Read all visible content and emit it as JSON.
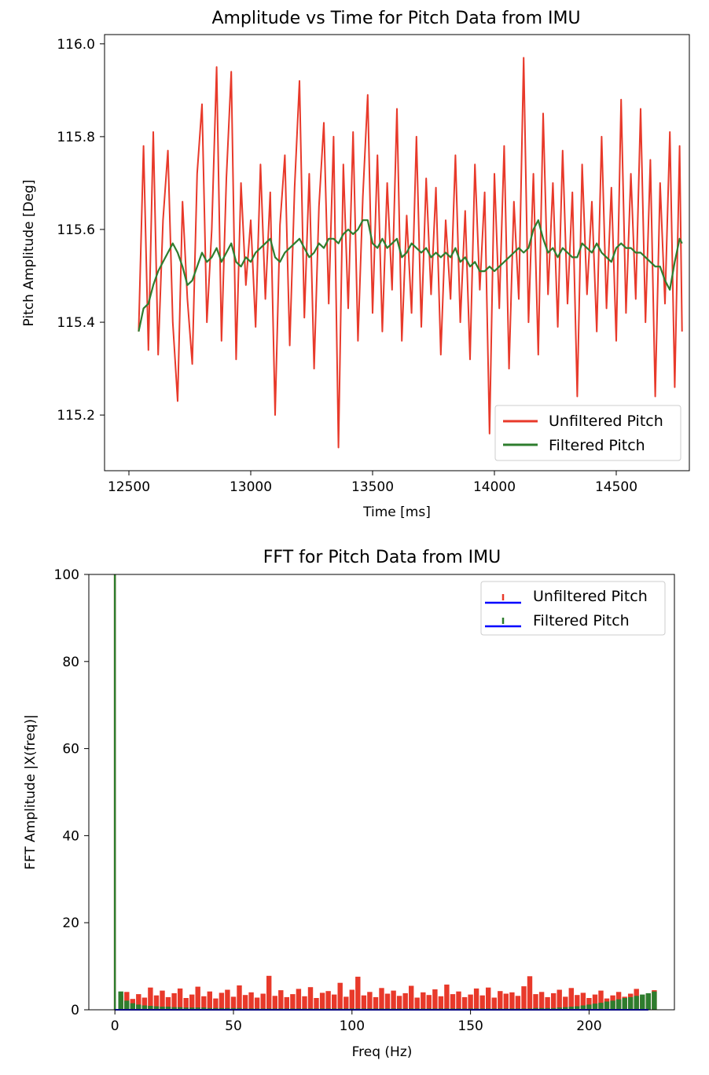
{
  "chart_data": [
    {
      "type": "line",
      "title": "Amplitude vs Time for Pitch Data from IMU",
      "xlabel": "Time [ms]",
      "ylabel": "Pitch Amplitude [Deg]",
      "xlim": [
        12400,
        14800
      ],
      "ylim": [
        115.08,
        116.02
      ],
      "xticks": [
        "12500",
        "13000",
        "13500",
        "14000",
        "14500"
      ],
      "yticks": [
        "115.2",
        "115.4",
        "115.6",
        "115.8",
        "116.0"
      ],
      "legend_position": "lower-right",
      "series": [
        {
          "name": "Unfiltered Pitch",
          "color": "#e8392a",
          "x": [
            12540,
            12560,
            12580,
            12600,
            12620,
            12640,
            12660,
            12680,
            12700,
            12720,
            12740,
            12760,
            12780,
            12800,
            12820,
            12840,
            12860,
            12880,
            12900,
            12920,
            12940,
            12960,
            12980,
            13000,
            13020,
            13040,
            13060,
            13080,
            13100,
            13120,
            13140,
            13160,
            13180,
            13200,
            13220,
            13240,
            13260,
            13280,
            13300,
            13320,
            13340,
            13360,
            13380,
            13400,
            13420,
            13440,
            13460,
            13480,
            13500,
            13520,
            13540,
            13560,
            13580,
            13600,
            13620,
            13640,
            13660,
            13680,
            13700,
            13720,
            13740,
            13760,
            13780,
            13800,
            13820,
            13840,
            13860,
            13880,
            13900,
            13920,
            13940,
            13960,
            13980,
            14000,
            14020,
            14040,
            14060,
            14080,
            14100,
            14120,
            14140,
            14160,
            14180,
            14200,
            14220,
            14240,
            14260,
            14280,
            14300,
            14320,
            14340,
            14360,
            14380,
            14400,
            14420,
            14440,
            14460,
            14480,
            14500,
            14520,
            14540,
            14560,
            14580,
            14600,
            14620,
            14640,
            14660,
            14680,
            14700,
            14720,
            14740,
            14760,
            14770
          ],
          "y": [
            115.38,
            115.78,
            115.34,
            115.81,
            115.33,
            115.62,
            115.77,
            115.4,
            115.23,
            115.66,
            115.45,
            115.31,
            115.72,
            115.87,
            115.4,
            115.6,
            115.95,
            115.36,
            115.71,
            115.94,
            115.32,
            115.7,
            115.48,
            115.62,
            115.39,
            115.74,
            115.45,
            115.68,
            115.2,
            115.61,
            115.76,
            115.35,
            115.69,
            115.92,
            115.41,
            115.72,
            115.3,
            115.65,
            115.83,
            115.44,
            115.8,
            115.13,
            115.74,
            115.43,
            115.81,
            115.36,
            115.67,
            115.89,
            115.42,
            115.76,
            115.38,
            115.7,
            115.47,
            115.86,
            115.36,
            115.63,
            115.42,
            115.8,
            115.39,
            115.71,
            115.46,
            115.69,
            115.33,
            115.62,
            115.45,
            115.76,
            115.4,
            115.64,
            115.32,
            115.74,
            115.47,
            115.68,
            115.16,
            115.72,
            115.43,
            115.78,
            115.3,
            115.66,
            115.45,
            115.97,
            115.4,
            115.72,
            115.33,
            115.85,
            115.46,
            115.7,
            115.39,
            115.77,
            115.44,
            115.68,
            115.24,
            115.74,
            115.46,
            115.66,
            115.38,
            115.8,
            115.43,
            115.69,
            115.36,
            115.88,
            115.42,
            115.72,
            115.45,
            115.86,
            115.4,
            115.75,
            115.24,
            115.7,
            115.44,
            115.81,
            115.26,
            115.78,
            115.38
          ]
        },
        {
          "name": "Filtered Pitch",
          "color": "#2e7d2e",
          "x": [
            12540,
            12560,
            12580,
            12600,
            12620,
            12640,
            12660,
            12680,
            12700,
            12720,
            12740,
            12760,
            12780,
            12800,
            12820,
            12840,
            12860,
            12880,
            12900,
            12920,
            12940,
            12960,
            12980,
            13000,
            13020,
            13040,
            13060,
            13080,
            13100,
            13120,
            13140,
            13160,
            13180,
            13200,
            13220,
            13240,
            13260,
            13280,
            13300,
            13320,
            13340,
            13360,
            13380,
            13400,
            13420,
            13440,
            13460,
            13480,
            13500,
            13520,
            13540,
            13560,
            13580,
            13600,
            13620,
            13640,
            13660,
            13680,
            13700,
            13720,
            13740,
            13760,
            13780,
            13800,
            13820,
            13840,
            13860,
            13880,
            13900,
            13920,
            13940,
            13960,
            13980,
            14000,
            14020,
            14040,
            14060,
            14080,
            14100,
            14120,
            14140,
            14160,
            14180,
            14200,
            14220,
            14240,
            14260,
            14280,
            14300,
            14320,
            14340,
            14360,
            14380,
            14400,
            14420,
            14440,
            14460,
            14480,
            14500,
            14520,
            14540,
            14560,
            14580,
            14600,
            14620,
            14640,
            14660,
            14680,
            14700,
            14720,
            14740,
            14760,
            14770
          ],
          "y": [
            115.38,
            115.43,
            115.44,
            115.48,
            115.51,
            115.53,
            115.55,
            115.57,
            115.55,
            115.52,
            115.48,
            115.49,
            115.52,
            115.55,
            115.53,
            115.54,
            115.56,
            115.53,
            115.55,
            115.57,
            115.53,
            115.52,
            115.54,
            115.53,
            115.55,
            115.56,
            115.57,
            115.58,
            115.54,
            115.53,
            115.55,
            115.56,
            115.57,
            115.58,
            115.56,
            115.54,
            115.55,
            115.57,
            115.56,
            115.58,
            115.58,
            115.57,
            115.59,
            115.6,
            115.59,
            115.6,
            115.62,
            115.62,
            115.57,
            115.56,
            115.58,
            115.56,
            115.57,
            115.58,
            115.54,
            115.55,
            115.57,
            115.56,
            115.55,
            115.56,
            115.54,
            115.55,
            115.54,
            115.55,
            115.54,
            115.56,
            115.53,
            115.54,
            115.52,
            115.53,
            115.51,
            115.51,
            115.52,
            115.51,
            115.52,
            115.53,
            115.54,
            115.55,
            115.56,
            115.55,
            115.56,
            115.6,
            115.62,
            115.58,
            115.55,
            115.56,
            115.54,
            115.56,
            115.55,
            115.54,
            115.54,
            115.57,
            115.56,
            115.55,
            115.57,
            115.55,
            115.54,
            115.53,
            115.56,
            115.57,
            115.56,
            115.56,
            115.55,
            115.55,
            115.54,
            115.53,
            115.52,
            115.52,
            115.49,
            115.47,
            115.53,
            115.58,
            115.57
          ]
        }
      ]
    },
    {
      "type": "bar",
      "title": "FFT for Pitch Data from IMU",
      "xlabel": "Freq (Hz)",
      "ylabel": "FFT Amplitude |X(freq)|",
      "xlim": [
        -11,
        236
      ],
      "ylim": [
        0,
        100
      ],
      "xticks": [
        "0",
        "50",
        "100",
        "150",
        "200"
      ],
      "yticks": [
        "0",
        "20",
        "40",
        "60",
        "80",
        "100"
      ],
      "legend_position": "upper-right",
      "legend_marker_colors": {
        "baseline": "#0000ff"
      },
      "series": [
        {
          "name": "Unfiltered Pitch",
          "color": "#e8392a",
          "x_start": 0,
          "x_step": 2.5,
          "values": [
            100,
            3.2,
            4.1,
            2.5,
            3.6,
            2.8,
            5.1,
            3.3,
            4.4,
            2.9,
            3.8,
            4.9,
            2.7,
            3.5,
            5.3,
            3.1,
            4.2,
            2.6,
            3.9,
            4.6,
            3.0,
            5.6,
            3.4,
            4.0,
            2.8,
            3.7,
            7.8,
            3.2,
            4.5,
            2.9,
            3.6,
            4.8,
            3.1,
            5.2,
            2.7,
            3.9,
            4.3,
            3.5,
            6.2,
            3.0,
            4.6,
            7.6,
            3.3,
            4.1,
            2.9,
            5.0,
            3.7,
            4.4,
            3.2,
            3.8,
            5.5,
            2.8,
            4.0,
            3.4,
            4.7,
            3.1,
            5.8,
            3.6,
            4.2,
            2.9,
            3.5,
            4.9,
            3.3,
            5.1,
            2.8,
            4.3,
            3.7,
            4.0,
            3.2,
            5.4,
            7.7,
            3.6,
            4.1,
            2.9,
            3.8,
            4.6,
            3.0,
            5.0,
            3.4,
            3.9,
            2.7,
            3.5,
            4.4,
            2.6,
            3.3,
            4.1,
            3.0,
            3.7,
            4.8,
            2.9,
            3.6,
            4.5
          ]
        },
        {
          "name": "Filtered Pitch",
          "color": "#2e7d2e",
          "x_start": 0,
          "x_step": 2.5,
          "values": [
            100,
            4.2,
            2.1,
            1.5,
            1.2,
            1.0,
            0.9,
            0.8,
            0.7,
            0.7,
            0.6,
            0.6,
            0.5,
            0.5,
            0.5,
            0.5,
            0.4,
            0.4,
            0.4,
            0.4,
            0.4,
            0.4,
            0.3,
            0.3,
            0.3,
            0.3,
            0.3,
            0.3,
            0.3,
            0.3,
            0.3,
            0.3,
            0.3,
            0.3,
            0.3,
            0.3,
            0.3,
            0.3,
            0.3,
            0.3,
            0.3,
            0.3,
            0.3,
            0.3,
            0.3,
            0.3,
            0.3,
            0.3,
            0.3,
            0.3,
            0.3,
            0.3,
            0.3,
            0.3,
            0.3,
            0.3,
            0.3,
            0.3,
            0.3,
            0.3,
            0.3,
            0.3,
            0.3,
            0.3,
            0.3,
            0.3,
            0.3,
            0.3,
            0.3,
            0.3,
            0.3,
            0.4,
            0.4,
            0.4,
            0.4,
            0.5,
            0.6,
            0.7,
            0.8,
            1.0,
            1.2,
            1.4,
            1.6,
            1.9,
            2.1,
            2.4,
            2.7,
            2.9,
            3.2,
            3.5,
            3.8,
            4.2
          ]
        }
      ]
    }
  ]
}
